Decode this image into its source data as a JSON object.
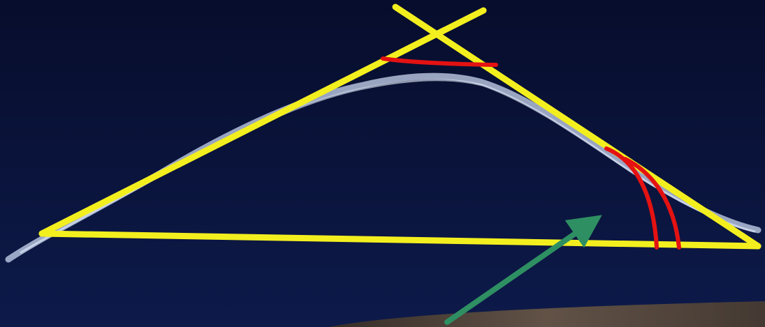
{
  "scene": {
    "colors": {
      "sky_top": "#070d2c",
      "sky_bottom": "#0d1a4a",
      "cloud": "#c9d7f0",
      "triangle": "#f3ef1f",
      "angle_marks": "#e41212",
      "arrow": "#2e8f62",
      "ground": "#5a4a3a"
    },
    "annotations": {
      "triangle": "yellow",
      "angle_arcs": 3,
      "arrow": "green"
    }
  }
}
